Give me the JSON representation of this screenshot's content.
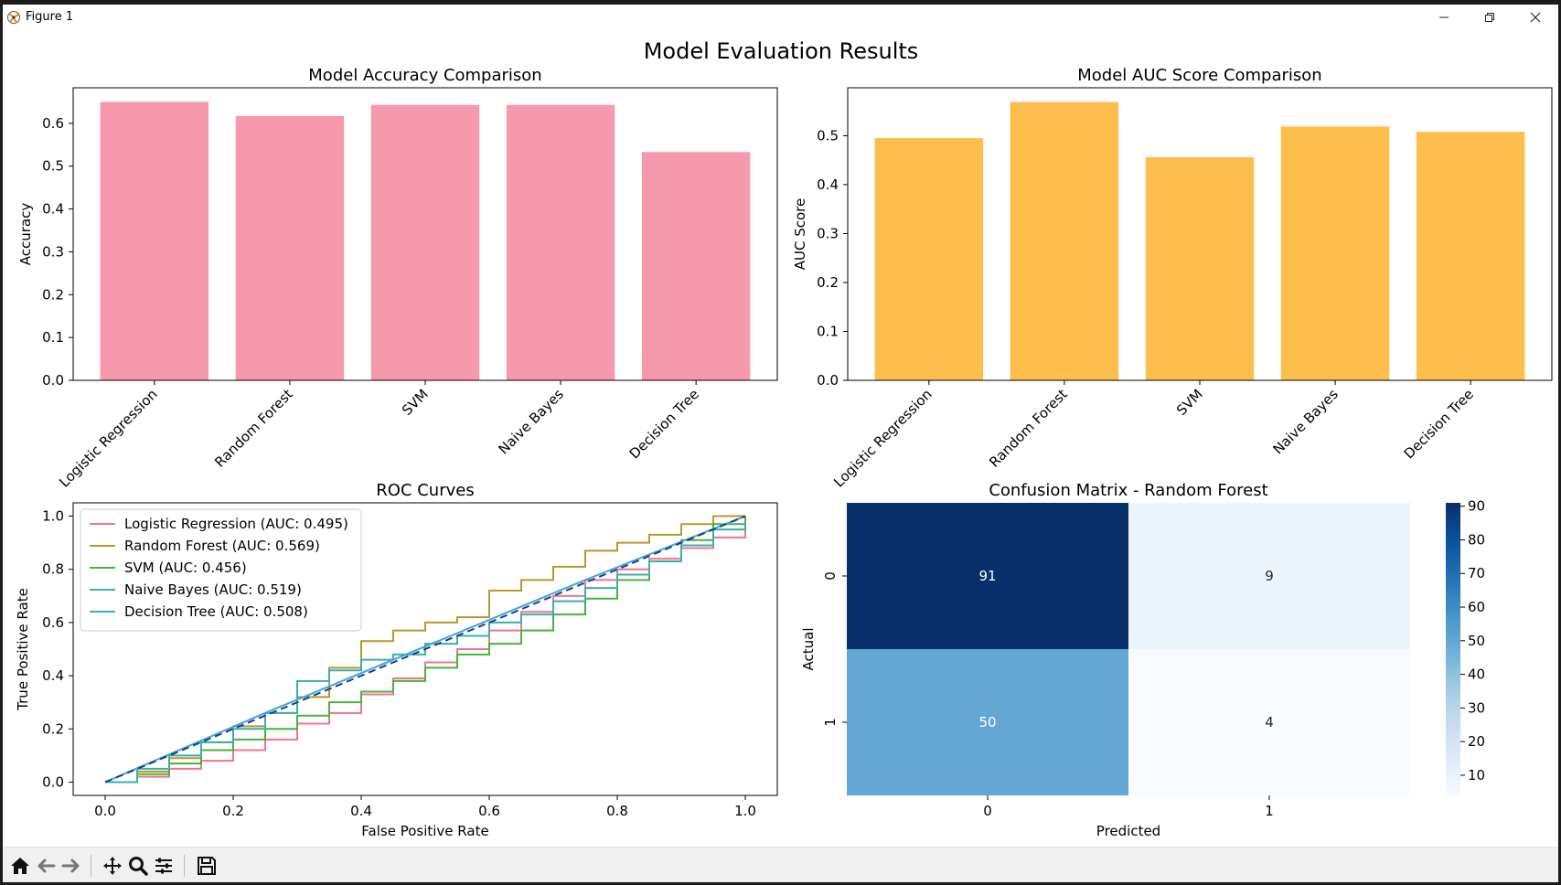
{
  "window": {
    "title": "Figure 1",
    "minimize_icon": "minimize-icon",
    "maximize_icon": "restore-icon",
    "close_icon": "close-icon"
  },
  "figure": {
    "suptitle": "Model Evaluation Results"
  },
  "toolbar": {
    "buttons": [
      "home-icon",
      "back-arrow-icon",
      "forward-arrow-icon",
      "pan-icon",
      "zoom-icon",
      "configure-subplots-icon",
      "save-icon"
    ]
  },
  "chart_data": [
    {
      "type": "bar",
      "title": "Model Accuracy Comparison",
      "xlabel": "",
      "ylabel": "Accuracy",
      "categories": [
        "Logistic Regression",
        "Random Forest",
        "SVM",
        "Naive Bayes",
        "Decision Tree"
      ],
      "values": [
        0.65,
        0.617,
        0.643,
        0.643,
        0.533
      ],
      "ylim": [
        0,
        0.683
      ],
      "yticks": [
        "0.0",
        "0.1",
        "0.2",
        "0.3",
        "0.4",
        "0.5",
        "0.6"
      ],
      "color": "#f799ac",
      "grid": false
    },
    {
      "type": "bar",
      "title": "Model AUC Score Comparison",
      "xlabel": "",
      "ylabel": "AUC Score",
      "categories": [
        "Logistic Regression",
        "Random Forest",
        "SVM",
        "Naive Bayes",
        "Decision Tree"
      ],
      "values": [
        0.495,
        0.569,
        0.456,
        0.519,
        0.508
      ],
      "ylim": [
        0,
        0.598
      ],
      "yticks": [
        "0.0",
        "0.1",
        "0.2",
        "0.3",
        "0.4",
        "0.5"
      ],
      "color": "#fdbe4d",
      "grid": false
    },
    {
      "type": "line",
      "title": "ROC Curves",
      "xlabel": "False Positive Rate",
      "ylabel": "True Positive Rate",
      "xlim": [
        -0.05,
        1.05
      ],
      "ylim": [
        -0.05,
        1.05
      ],
      "xticks": [
        "0.0",
        "0.2",
        "0.4",
        "0.6",
        "0.8",
        "1.0"
      ],
      "yticks": [
        "0.0",
        "0.2",
        "0.4",
        "0.6",
        "0.8",
        "1.0"
      ],
      "legend_position": "top-left",
      "series": [
        {
          "name": "Logistic Regression (AUC: 0.495)",
          "color": "#f2738c",
          "points": [
            [
              0,
              0
            ],
            [
              0.05,
              0.02
            ],
            [
              0.1,
              0.05
            ],
            [
              0.15,
              0.08
            ],
            [
              0.2,
              0.12
            ],
            [
              0.25,
              0.16
            ],
            [
              0.3,
              0.22
            ],
            [
              0.35,
              0.26
            ],
            [
              0.4,
              0.33
            ],
            [
              0.45,
              0.39
            ],
            [
              0.5,
              0.45
            ],
            [
              0.55,
              0.5
            ],
            [
              0.6,
              0.57
            ],
            [
              0.65,
              0.64
            ],
            [
              0.7,
              0.7
            ],
            [
              0.75,
              0.76
            ],
            [
              0.8,
              0.8
            ],
            [
              0.85,
              0.84
            ],
            [
              0.9,
              0.88
            ],
            [
              0.95,
              0.92
            ],
            [
              1,
              0.95
            ]
          ]
        },
        {
          "name": "Random Forest (AUC: 0.569)",
          "color": "#b8982e",
          "points": [
            [
              0,
              0
            ],
            [
              0.05,
              0.04
            ],
            [
              0.1,
              0.09
            ],
            [
              0.15,
              0.15
            ],
            [
              0.2,
              0.21
            ],
            [
              0.25,
              0.26
            ],
            [
              0.3,
              0.32
            ],
            [
              0.35,
              0.43
            ],
            [
              0.4,
              0.53
            ],
            [
              0.45,
              0.57
            ],
            [
              0.5,
              0.6
            ],
            [
              0.55,
              0.62
            ],
            [
              0.6,
              0.72
            ],
            [
              0.65,
              0.76
            ],
            [
              0.7,
              0.81
            ],
            [
              0.75,
              0.87
            ],
            [
              0.8,
              0.9
            ],
            [
              0.85,
              0.93
            ],
            [
              0.9,
              0.97
            ],
            [
              0.95,
              1
            ],
            [
              1,
              1
            ]
          ]
        },
        {
          "name": "SVM (AUC: 0.456)",
          "color": "#47b33b",
          "points": [
            [
              0,
              0
            ],
            [
              0.05,
              0.03
            ],
            [
              0.1,
              0.07
            ],
            [
              0.15,
              0.12
            ],
            [
              0.2,
              0.16
            ],
            [
              0.25,
              0.2
            ],
            [
              0.3,
              0.25
            ],
            [
              0.35,
              0.3
            ],
            [
              0.4,
              0.34
            ],
            [
              0.45,
              0.38
            ],
            [
              0.5,
              0.43
            ],
            [
              0.55,
              0.48
            ],
            [
              0.6,
              0.52
            ],
            [
              0.65,
              0.57
            ],
            [
              0.7,
              0.63
            ],
            [
              0.75,
              0.69
            ],
            [
              0.8,
              0.76
            ],
            [
              0.85,
              0.83
            ],
            [
              0.9,
              0.91
            ],
            [
              0.95,
              0.97
            ],
            [
              1,
              1
            ]
          ]
        },
        {
          "name": "Naive Bayes (AUC: 0.519)",
          "color": "#3aafac",
          "points": [
            [
              0,
              0
            ],
            [
              0.05,
              0.05
            ],
            [
              0.1,
              0.1
            ],
            [
              0.15,
              0.15
            ],
            [
              0.2,
              0.2
            ],
            [
              0.25,
              0.26
            ],
            [
              0.3,
              0.38
            ],
            [
              0.35,
              0.42
            ],
            [
              0.4,
              0.46
            ],
            [
              0.45,
              0.48
            ],
            [
              0.5,
              0.52
            ],
            [
              0.55,
              0.55
            ],
            [
              0.6,
              0.6
            ],
            [
              0.65,
              0.63
            ],
            [
              0.7,
              0.68
            ],
            [
              0.75,
              0.73
            ],
            [
              0.8,
              0.78
            ],
            [
              0.85,
              0.83
            ],
            [
              0.9,
              0.89
            ],
            [
              0.95,
              0.95
            ],
            [
              1,
              0.98
            ]
          ]
        },
        {
          "name": "Decision Tree (AUC: 0.508)",
          "color": "#3ea5e3",
          "points": [
            [
              0,
              0
            ],
            [
              0.25,
              0.26
            ],
            [
              0.5,
              0.51
            ],
            [
              0.75,
              0.76
            ],
            [
              1,
              1
            ]
          ]
        }
      ],
      "reference_line": {
        "points": [
          [
            0,
            0
          ],
          [
            1,
            1
          ]
        ],
        "style": "dashed",
        "color": "#1f3f7a"
      }
    },
    {
      "type": "heatmap",
      "title": "Confusion Matrix - Random Forest",
      "xlabel": "Predicted",
      "ylabel": "Actual",
      "x_categories": [
        "0",
        "1"
      ],
      "y_categories": [
        "0",
        "1"
      ],
      "values": [
        [
          91,
          9
        ],
        [
          50,
          4
        ]
      ],
      "colorbar_ticks": [
        "10",
        "20",
        "30",
        "40",
        "50",
        "60",
        "70",
        "80",
        "90"
      ],
      "colormap": "Blues",
      "vmin": 4,
      "vmax": 91
    }
  ]
}
